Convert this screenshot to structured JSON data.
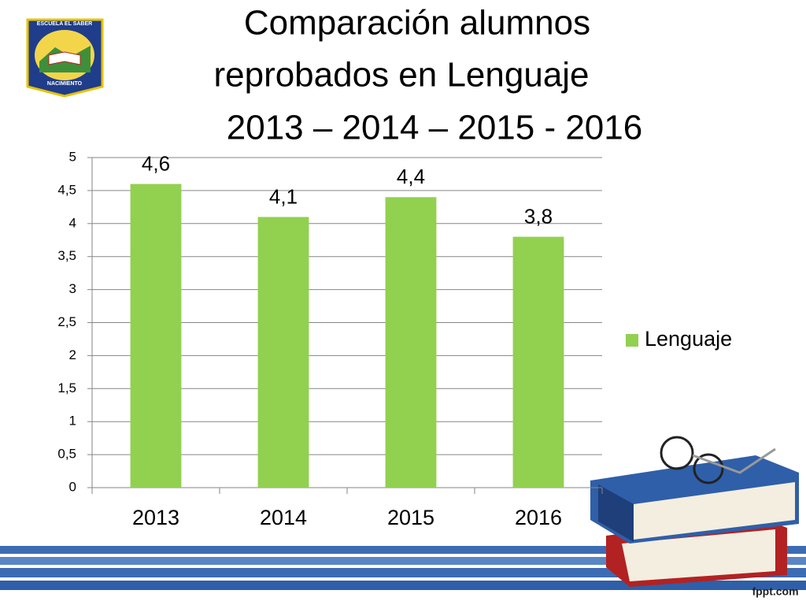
{
  "logo_text": [
    "ESCUELA EL SABER",
    "NACIMIENTO"
  ],
  "watermark": "fppt.com",
  "chart_data": {
    "type": "bar",
    "title": [
      "Comparación alumnos",
      "reprobados en Lenguaje",
      "2013 – 2014 – 2015 - 2016"
    ],
    "categories": [
      "2013",
      "2014",
      "2015",
      "2016"
    ],
    "series": [
      {
        "name": "Lenguaje",
        "color": "#92d050",
        "values": [
          4.6,
          4.1,
          4.4,
          3.8
        ],
        "value_labels": [
          "4,6",
          "4,1",
          "4,4",
          "3,8"
        ]
      }
    ],
    "ylim": [
      0,
      5
    ],
    "yticks": [
      0,
      {
        "value": 0.5,
        "label": "0,5"
      },
      1,
      {
        "value": 1.5,
        "label": "1,5"
      },
      2,
      {
        "value": 2.5,
        "label": "2,5"
      },
      3,
      {
        "value": 3.5,
        "label": "3,5"
      },
      4,
      {
        "value": 4.5,
        "label": "4,5"
      },
      5
    ],
    "grid": true,
    "legend": "right"
  }
}
